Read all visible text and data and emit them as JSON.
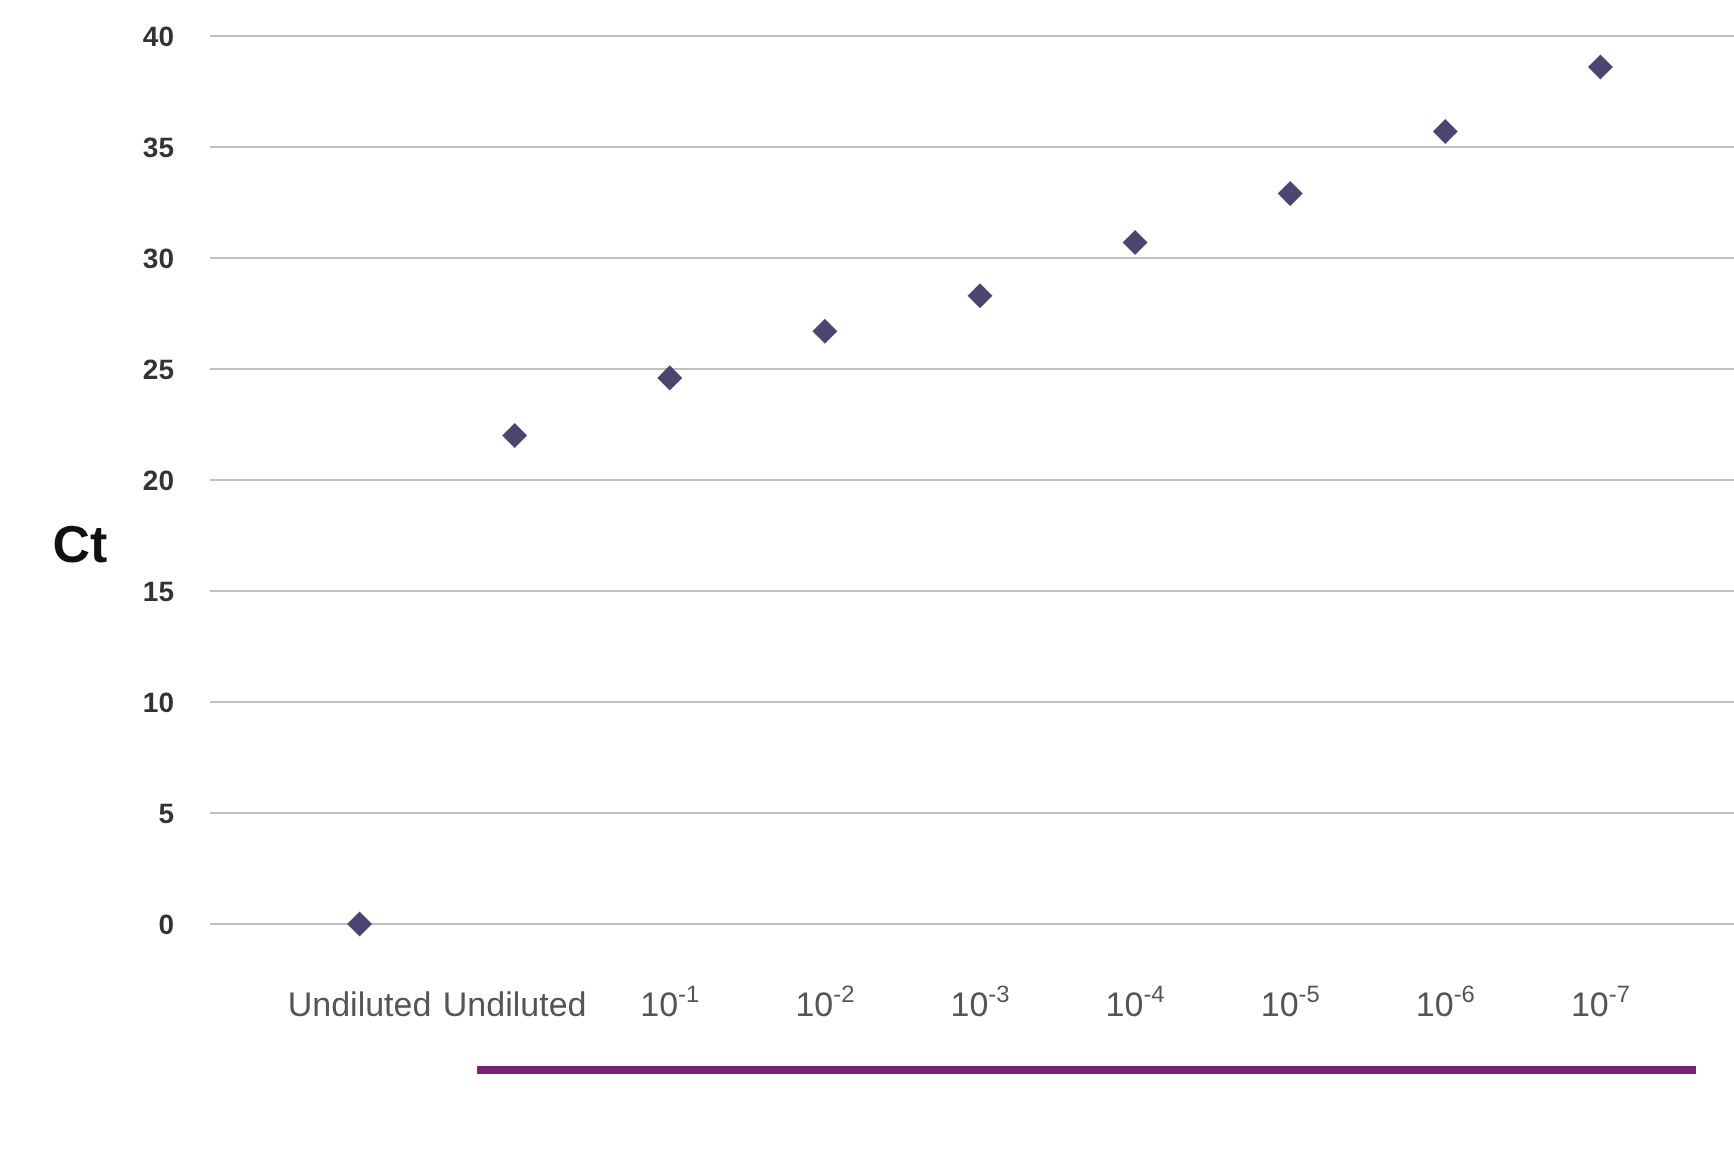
{
  "chart_data": {
    "type": "scatter",
    "ylabel": "Ct",
    "categories": [
      "Undiluted",
      "Undiluted",
      "10$^{-1}$",
      "10$^{-2}$",
      "10$^{-3}$",
      "10$^{-4}$",
      "10$^{-5}$",
      "10$^{-6}$",
      "10$^{-7}$"
    ],
    "series": [
      {
        "color": "#4e4470",
        "values": [
          0,
          22,
          24.6,
          26.7,
          28.3,
          30.7,
          32.9,
          35.7,
          38.6
        ]
      }
    ],
    "ylim": [
      0,
      40
    ],
    "yticks": [
      0,
      5,
      10,
      15,
      20,
      25,
      30,
      35,
      40
    ],
    "grid": "y",
    "marker": "diamond"
  }
}
